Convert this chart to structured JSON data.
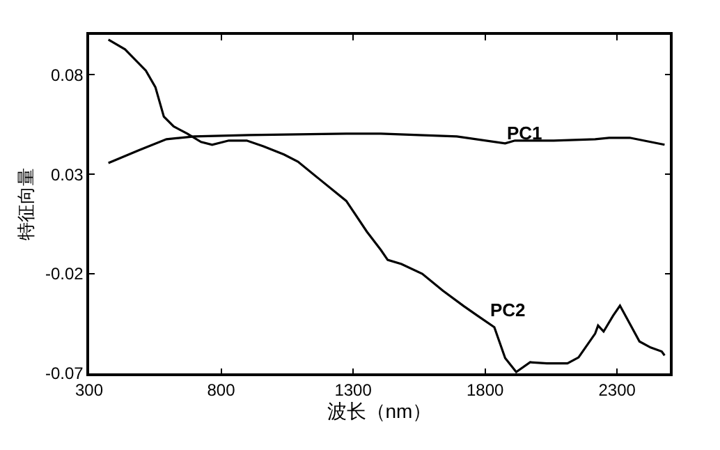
{
  "chart_data": {
    "type": "line",
    "xlabel": "波长（nm）",
    "ylabel": "特征向量",
    "xlim": [
      300,
      2500
    ],
    "xticks": [
      300,
      800,
      1300,
      1800,
      2300
    ],
    "ylim": [
      -0.07,
      0.1
    ],
    "yticks": [
      -0.07,
      -0.02,
      0.03,
      0.08
    ],
    "grid": false,
    "marker": "none",
    "line_style": "solid",
    "series": [
      {
        "color": "#000000",
        "x": [
          373,
          488,
          593,
          698,
          907,
          1274,
          1405,
          1693,
          1876,
          1913,
          2060,
          2217,
          2270,
          2348,
          2480
        ],
        "values": [
          0.0356,
          0.042,
          0.0476,
          0.049,
          0.0497,
          0.0504,
          0.0504,
          0.049,
          0.0455,
          0.0469,
          0.0469,
          0.0476,
          0.0483,
          0.0483,
          0.0448
        ]
      },
      {
        "color": "#000000",
        "x": [
          373,
          436,
          515,
          551,
          583,
          620,
          672,
          724,
          766,
          829,
          897,
          960,
          1038,
          1091,
          1169,
          1274,
          1352,
          1405,
          1431,
          1483,
          1562,
          1640,
          1719,
          1772,
          1835,
          1876,
          1918,
          1971,
          2034,
          2112,
          2154,
          2217,
          2228,
          2249,
          2285,
          2311,
          2348,
          2385,
          2427,
          2469,
          2480
        ],
        "values": [
          0.0976,
          0.0927,
          0.082,
          0.0737,
          0.0589,
          0.054,
          0.0504,
          0.0462,
          0.0448,
          0.0469,
          0.0469,
          0.044,
          0.0399,
          0.0363,
          0.0279,
          0.0166,
          0.0012,
          -0.008,
          -0.013,
          -0.0151,
          -0.02,
          -0.0285,
          -0.0362,
          -0.0411,
          -0.0468,
          -0.0623,
          -0.0693,
          -0.0644,
          -0.065,
          -0.065,
          -0.062,
          -0.05,
          -0.046,
          -0.049,
          -0.041,
          -0.036,
          -0.045,
          -0.054,
          -0.057,
          -0.059,
          -0.061
        ]
      }
    ],
    "annotations": [
      "PC1",
      "PC2"
    ]
  }
}
